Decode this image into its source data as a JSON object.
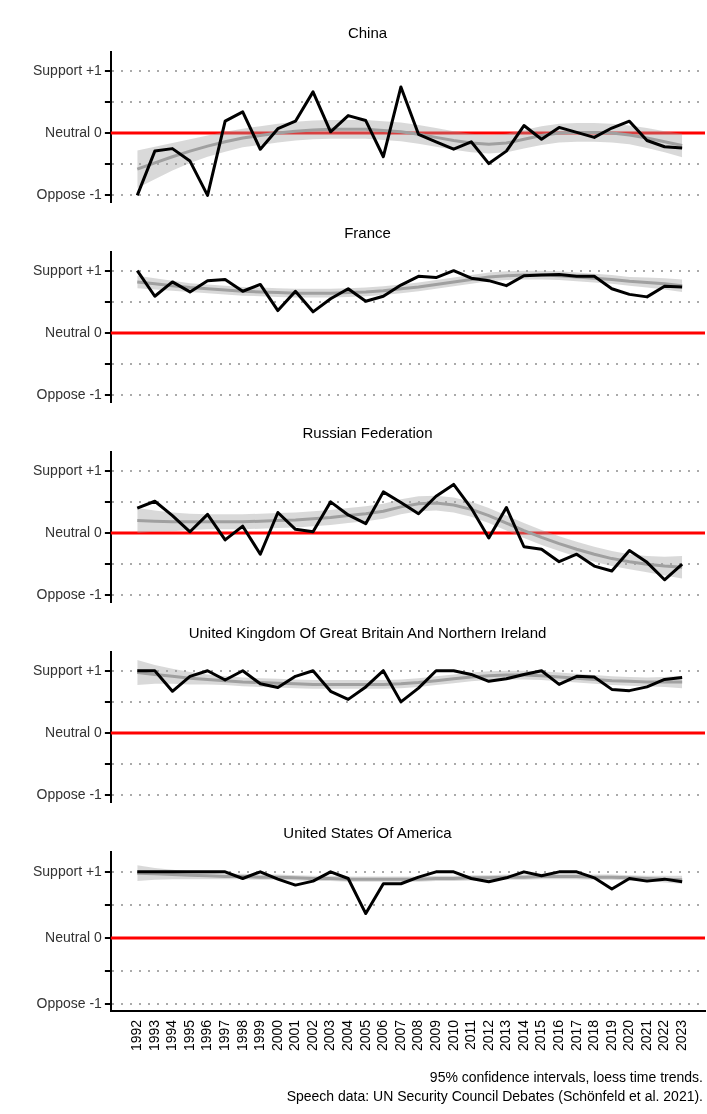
{
  "chart_data": [
    {
      "type": "line",
      "title": "China",
      "categories": [
        "1992",
        "1993",
        "1994",
        "1995",
        "1996",
        "1997",
        "1998",
        "1999",
        "2000",
        "2001",
        "2002",
        "2003",
        "2004",
        "2005",
        "2006",
        "2007",
        "2008",
        "2009",
        "2010",
        "2011",
        "2012",
        "2013",
        "2014",
        "2015",
        "2016",
        "2017",
        "2018",
        "2019",
        "2020",
        "2021",
        "2022",
        "2023"
      ],
      "series": [
        {
          "color": "#000000",
          "values": [
            -1.0,
            -0.29,
            -0.25,
            -0.45,
            -1.0,
            0.19,
            0.34,
            -0.26,
            0.07,
            0.19,
            0.66,
            0.02,
            0.28,
            0.2,
            -0.38,
            0.74,
            -0.02,
            -0.14,
            -0.26,
            -0.14,
            -0.49,
            -0.29,
            0.12,
            -0.1,
            0.09,
            0.01,
            -0.07,
            0.08,
            0.19,
            -0.12,
            -0.22,
            -0.24
          ]
        },
        {
          "type": "line",
          "color": "#a0a0a0",
          "values": [
            -0.58,
            -0.48,
            -0.38,
            -0.29,
            -0.21,
            -0.14,
            -0.08,
            -0.04,
            0.0,
            0.03,
            0.05,
            0.06,
            0.06,
            0.06,
            0.04,
            0.02,
            -0.02,
            -0.07,
            -0.12,
            -0.16,
            -0.18,
            -0.16,
            -0.1,
            -0.04,
            0.0,
            0.01,
            0.01,
            0.0,
            -0.03,
            -0.08,
            -0.14,
            -0.2
          ],
          "lower": [
            -0.88,
            -0.74,
            -0.6,
            -0.48,
            -0.38,
            -0.3,
            -0.23,
            -0.19,
            -0.15,
            -0.12,
            -0.1,
            -0.09,
            -0.09,
            -0.09,
            -0.11,
            -0.13,
            -0.17,
            -0.22,
            -0.27,
            -0.31,
            -0.33,
            -0.31,
            -0.25,
            -0.19,
            -0.15,
            -0.14,
            -0.14,
            -0.15,
            -0.18,
            -0.24,
            -0.31,
            -0.39
          ],
          "upper": [
            -0.28,
            -0.22,
            -0.16,
            -0.1,
            -0.04,
            0.02,
            0.07,
            0.11,
            0.15,
            0.18,
            0.2,
            0.21,
            0.21,
            0.21,
            0.19,
            0.17,
            0.13,
            0.08,
            0.03,
            -0.01,
            -0.03,
            -0.01,
            0.05,
            0.11,
            0.15,
            0.16,
            0.16,
            0.15,
            0.12,
            0.08,
            0.03,
            -0.01
          ]
        }
      ],
      "ylim": [
        -1.1,
        1.3
      ],
      "yticks": [
        {
          "value": -1,
          "label": "Oppose -1"
        },
        {
          "value": -0.5,
          "label": null
        },
        {
          "value": 0,
          "label": "Neutral 0"
        },
        {
          "value": 0.5,
          "label": null
        },
        {
          "value": 1,
          "label": "Support +1"
        }
      ],
      "grid": "y",
      "tick_labels": "y",
      "ref_lines": [
        {
          "axis": "y",
          "value": 0,
          "color": "#ff0000"
        }
      ]
    },
    {
      "type": "line",
      "title": "France",
      "categories": [
        "1992",
        "1993",
        "1994",
        "1995",
        "1996",
        "1997",
        "1998",
        "1999",
        "2000",
        "2001",
        "2002",
        "2003",
        "2004",
        "2005",
        "2006",
        "2007",
        "2008",
        "2009",
        "2010",
        "2011",
        "2012",
        "2013",
        "2014",
        "2015",
        "2016",
        "2017",
        "2018",
        "2019",
        "2020",
        "2021",
        "2022",
        "2023"
      ],
      "series": [
        {
          "color": "#000000",
          "values": [
            1.0,
            0.59,
            0.82,
            0.66,
            0.84,
            0.86,
            0.67,
            0.78,
            0.36,
            0.67,
            0.34,
            0.55,
            0.71,
            0.51,
            0.59,
            0.77,
            0.91,
            0.89,
            1.0,
            0.88,
            0.84,
            0.76,
            0.92,
            0.93,
            0.94,
            0.91,
            0.91,
            0.71,
            0.62,
            0.58,
            0.75,
            0.74
          ]
        },
        {
          "type": "line",
          "color": "#a0a0a0",
          "values": [
            0.82,
            0.79,
            0.76,
            0.73,
            0.71,
            0.69,
            0.67,
            0.66,
            0.65,
            0.64,
            0.64,
            0.64,
            0.65,
            0.66,
            0.68,
            0.71,
            0.74,
            0.78,
            0.82,
            0.86,
            0.9,
            0.92,
            0.93,
            0.93,
            0.92,
            0.9,
            0.88,
            0.86,
            0.83,
            0.81,
            0.79,
            0.76
          ],
          "lower": [
            0.72,
            0.7,
            0.68,
            0.66,
            0.64,
            0.62,
            0.6,
            0.59,
            0.58,
            0.57,
            0.57,
            0.57,
            0.58,
            0.59,
            0.61,
            0.64,
            0.67,
            0.71,
            0.75,
            0.79,
            0.83,
            0.85,
            0.86,
            0.86,
            0.85,
            0.83,
            0.81,
            0.79,
            0.76,
            0.73,
            0.7,
            0.66
          ],
          "upper": [
            0.92,
            0.88,
            0.84,
            0.8,
            0.78,
            0.76,
            0.74,
            0.73,
            0.72,
            0.71,
            0.71,
            0.71,
            0.72,
            0.73,
            0.75,
            0.78,
            0.81,
            0.85,
            0.89,
            0.93,
            0.97,
            0.99,
            1.0,
            1.0,
            0.99,
            0.97,
            0.95,
            0.93,
            0.9,
            0.89,
            0.88,
            0.86
          ]
        }
      ],
      "ylim": [
        -1.1,
        1.3
      ],
      "yticks": [
        {
          "value": -1,
          "label": "Oppose -1"
        },
        {
          "value": -0.5,
          "label": null
        },
        {
          "value": 0,
          "label": "Neutral 0"
        },
        {
          "value": 0.5,
          "label": null
        },
        {
          "value": 1,
          "label": "Support +1"
        }
      ],
      "grid": "y",
      "tick_labels": "y",
      "ref_lines": [
        {
          "axis": "y",
          "value": 0,
          "color": "#ff0000"
        }
      ]
    },
    {
      "type": "line",
      "title": "Russian Federation",
      "categories": [
        "1992",
        "1993",
        "1994",
        "1995",
        "1996",
        "1997",
        "1998",
        "1999",
        "2000",
        "2001",
        "2002",
        "2003",
        "2004",
        "2005",
        "2006",
        "2007",
        "2008",
        "2009",
        "2010",
        "2011",
        "2012",
        "2013",
        "2014",
        "2015",
        "2016",
        "2017",
        "2018",
        "2019",
        "2020",
        "2021",
        "2022",
        "2023"
      ],
      "series": [
        {
          "color": "#000000",
          "values": [
            0.4,
            0.51,
            0.28,
            0.02,
            0.3,
            -0.11,
            0.11,
            -0.34,
            0.33,
            0.06,
            0.02,
            0.5,
            0.29,
            0.15,
            0.66,
            0.49,
            0.31,
            0.59,
            0.78,
            0.4,
            -0.08,
            0.41,
            -0.22,
            -0.26,
            -0.46,
            -0.34,
            -0.53,
            -0.61,
            -0.28,
            -0.47,
            -0.75,
            -0.5
          ]
        },
        {
          "type": "line",
          "color": "#a0a0a0",
          "values": [
            0.2,
            0.19,
            0.18,
            0.18,
            0.18,
            0.18,
            0.18,
            0.19,
            0.2,
            0.21,
            0.23,
            0.25,
            0.28,
            0.31,
            0.35,
            0.42,
            0.47,
            0.48,
            0.45,
            0.38,
            0.28,
            0.16,
            0.04,
            -0.07,
            -0.17,
            -0.26,
            -0.34,
            -0.41,
            -0.46,
            -0.5,
            -0.53,
            -0.55
          ],
          "lower": [
            0.0,
            0.02,
            0.03,
            0.05,
            0.06,
            0.06,
            0.06,
            0.07,
            0.08,
            0.09,
            0.11,
            0.13,
            0.16,
            0.19,
            0.23,
            0.3,
            0.35,
            0.36,
            0.33,
            0.26,
            0.16,
            0.04,
            -0.08,
            -0.19,
            -0.29,
            -0.38,
            -0.46,
            -0.53,
            -0.58,
            -0.63,
            -0.68,
            -0.73
          ],
          "upper": [
            0.4,
            0.36,
            0.33,
            0.31,
            0.3,
            0.3,
            0.3,
            0.31,
            0.32,
            0.33,
            0.35,
            0.37,
            0.4,
            0.43,
            0.47,
            0.54,
            0.59,
            0.6,
            0.57,
            0.5,
            0.4,
            0.28,
            0.16,
            0.05,
            -0.05,
            -0.14,
            -0.22,
            -0.29,
            -0.34,
            -0.37,
            -0.38,
            -0.37
          ]
        }
      ],
      "ylim": [
        -1.1,
        1.3
      ],
      "yticks": [
        {
          "value": -1,
          "label": "Oppose -1"
        },
        {
          "value": -0.5,
          "label": null
        },
        {
          "value": 0,
          "label": "Neutral 0"
        },
        {
          "value": 0.5,
          "label": null
        },
        {
          "value": 1,
          "label": "Support +1"
        }
      ],
      "grid": "y",
      "tick_labels": "y",
      "ref_lines": [
        {
          "axis": "y",
          "value": 0,
          "color": "#ff0000"
        }
      ]
    },
    {
      "type": "line",
      "title": "United Kingdom Of Great Britain And Northern Ireland",
      "categories": [
        "1992",
        "1993",
        "1994",
        "1995",
        "1996",
        "1997",
        "1998",
        "1999",
        "2000",
        "2001",
        "2002",
        "2003",
        "2004",
        "2005",
        "2006",
        "2007",
        "2008",
        "2009",
        "2010",
        "2011",
        "2012",
        "2013",
        "2014",
        "2015",
        "2016",
        "2017",
        "2018",
        "2019",
        "2020",
        "2021",
        "2022",
        "2023"
      ],
      "series": [
        {
          "color": "#000000",
          "values": [
            1.0,
            1.0,
            0.67,
            0.91,
            1.0,
            0.85,
            1.0,
            0.79,
            0.73,
            0.91,
            1.0,
            0.67,
            0.54,
            0.74,
            1.0,
            0.5,
            0.72,
            1.0,
            1.0,
            0.94,
            0.83,
            0.87,
            0.94,
            1.0,
            0.78,
            0.91,
            0.9,
            0.7,
            0.68,
            0.74,
            0.86,
            0.89
          ]
        },
        {
          "type": "line",
          "color": "#a0a0a0",
          "values": [
            0.97,
            0.94,
            0.91,
            0.88,
            0.86,
            0.84,
            0.82,
            0.81,
            0.8,
            0.79,
            0.78,
            0.78,
            0.78,
            0.78,
            0.78,
            0.79,
            0.81,
            0.84,
            0.87,
            0.9,
            0.92,
            0.93,
            0.93,
            0.92,
            0.9,
            0.88,
            0.86,
            0.84,
            0.83,
            0.82,
            0.82,
            0.82
          ],
          "lower": [
            0.77,
            0.79,
            0.79,
            0.78,
            0.78,
            0.77,
            0.75,
            0.74,
            0.73,
            0.72,
            0.71,
            0.71,
            0.71,
            0.71,
            0.71,
            0.72,
            0.74,
            0.77,
            0.8,
            0.83,
            0.85,
            0.86,
            0.86,
            0.85,
            0.83,
            0.81,
            0.79,
            0.77,
            0.76,
            0.75,
            0.74,
            0.72
          ],
          "upper": [
            1.17,
            1.09,
            1.03,
            0.98,
            0.94,
            0.91,
            0.89,
            0.88,
            0.87,
            0.86,
            0.85,
            0.85,
            0.85,
            0.85,
            0.85,
            0.86,
            0.88,
            0.91,
            0.94,
            0.97,
            0.99,
            1.0,
            1.0,
            0.99,
            0.97,
            0.95,
            0.93,
            0.91,
            0.9,
            0.89,
            0.9,
            0.92
          ]
        }
      ],
      "ylim": [
        -1.1,
        1.3
      ],
      "yticks": [
        {
          "value": -1,
          "label": "Oppose -1"
        },
        {
          "value": -0.5,
          "label": null
        },
        {
          "value": 0,
          "label": "Neutral 0"
        },
        {
          "value": 0.5,
          "label": null
        },
        {
          "value": 1,
          "label": "Support +1"
        }
      ],
      "grid": "y",
      "tick_labels": "y",
      "ref_lines": [
        {
          "axis": "y",
          "value": 0,
          "color": "#ff0000"
        }
      ]
    },
    {
      "type": "line",
      "title": "United States Of America",
      "categories": [
        "1992",
        "1993",
        "1994",
        "1995",
        "1996",
        "1997",
        "1998",
        "1999",
        "2000",
        "2001",
        "2002",
        "2003",
        "2004",
        "2005",
        "2006",
        "2007",
        "2008",
        "2009",
        "2010",
        "2011",
        "2012",
        "2013",
        "2014",
        "2015",
        "2016",
        "2017",
        "2018",
        "2019",
        "2020",
        "2021",
        "2022",
        "2023"
      ],
      "series": [
        {
          "color": "#000000",
          "values": [
            1.0,
            1.0,
            1.0,
            1.0,
            1.0,
            1.0,
            0.9,
            1.0,
            0.89,
            0.8,
            0.86,
            1.0,
            0.9,
            0.37,
            0.82,
            0.82,
            0.92,
            1.0,
            1.0,
            0.9,
            0.85,
            0.91,
            1.0,
            0.94,
            1.0,
            1.0,
            0.91,
            0.74,
            0.9,
            0.86,
            0.89,
            0.85
          ]
        },
        {
          "type": "line",
          "color": "#a0a0a0",
          "values": [
            0.98,
            0.97,
            0.96,
            0.95,
            0.94,
            0.93,
            0.93,
            0.92,
            0.92,
            0.91,
            0.9,
            0.9,
            0.89,
            0.89,
            0.89,
            0.89,
            0.89,
            0.9,
            0.9,
            0.91,
            0.91,
            0.92,
            0.92,
            0.93,
            0.93,
            0.93,
            0.92,
            0.92,
            0.91,
            0.9,
            0.89,
            0.88
          ],
          "lower": [
            0.86,
            0.88,
            0.89,
            0.89,
            0.89,
            0.89,
            0.89,
            0.88,
            0.88,
            0.87,
            0.86,
            0.86,
            0.85,
            0.85,
            0.85,
            0.85,
            0.85,
            0.86,
            0.86,
            0.87,
            0.87,
            0.88,
            0.88,
            0.89,
            0.89,
            0.89,
            0.88,
            0.88,
            0.87,
            0.86,
            0.84,
            0.82
          ],
          "upper": [
            1.1,
            1.06,
            1.03,
            1.01,
            0.99,
            0.97,
            0.97,
            0.96,
            0.96,
            0.95,
            0.94,
            0.94,
            0.93,
            0.93,
            0.93,
            0.93,
            0.93,
            0.94,
            0.94,
            0.95,
            0.95,
            0.96,
            0.96,
            0.97,
            0.97,
            0.97,
            0.96,
            0.96,
            0.95,
            0.94,
            0.94,
            0.94
          ]
        }
      ],
      "ylim": [
        -1.1,
        1.3
      ],
      "yticks": [
        {
          "value": -1,
          "label": "Oppose -1"
        },
        {
          "value": -0.5,
          "label": null
        },
        {
          "value": 0,
          "label": "Neutral 0"
        },
        {
          "value": 0.5,
          "label": null
        },
        {
          "value": 1,
          "label": "Support +1"
        }
      ],
      "grid": "y",
      "ref_lines": [
        {
          "axis": "y",
          "value": 0,
          "color": "#ff0000"
        }
      ],
      "annotations": [
        "95% confidence intervals, loess time trends.",
        "Speech data: UN Security Council Debates (Schönfeld et al. 2021)."
      ]
    }
  ]
}
